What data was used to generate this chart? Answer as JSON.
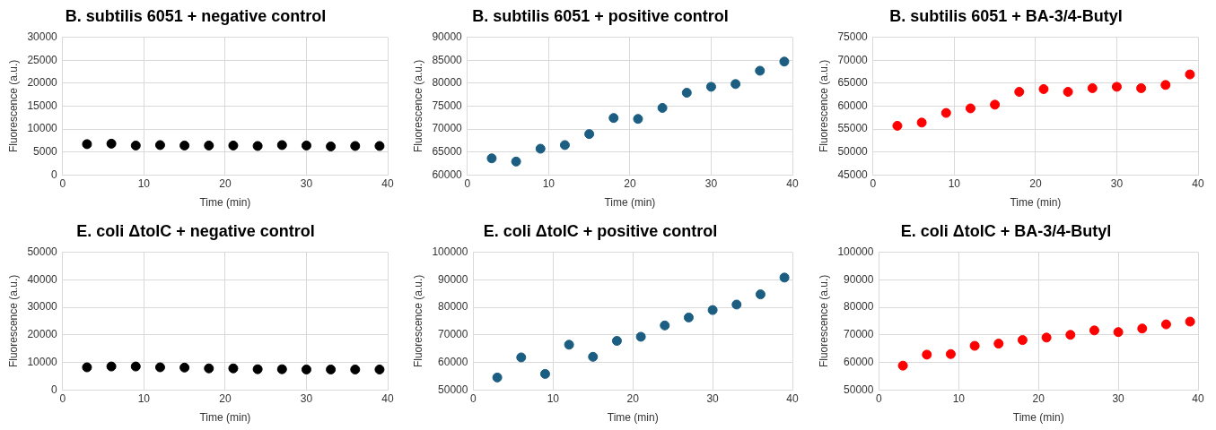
{
  "chart_data": [
    {
      "type": "scatter",
      "title": "B. subtilis 6051 + negative control",
      "xlabel": "Time (min)",
      "ylabel": "Fluorescence (a.u.)",
      "x": [
        3,
        6,
        9,
        12,
        15,
        18,
        21,
        24,
        27,
        30,
        33,
        36,
        39
      ],
      "xlim": [
        0,
        40
      ],
      "xticks": [
        0,
        10,
        20,
        30,
        40
      ],
      "ylim": [
        0,
        30000
      ],
      "yticks": [
        0,
        5000,
        10000,
        15000,
        20000,
        25000,
        30000
      ],
      "grid": true,
      "marker": "circle",
      "legend": false,
      "series": [
        {
          "color": "#000000",
          "values": [
            6700,
            6800,
            6400,
            6500,
            6400,
            6400,
            6400,
            6300,
            6500,
            6400,
            6200,
            6300,
            6300
          ]
        }
      ]
    },
    {
      "type": "scatter",
      "title": "B. subtilis 6051 + positive control",
      "xlabel": "Time (min)",
      "ylabel": "Fluorescence (a.u.)",
      "x": [
        3,
        6,
        9,
        12,
        15,
        18,
        21,
        24,
        27,
        30,
        33,
        36,
        39
      ],
      "xlim": [
        0,
        40
      ],
      "xticks": [
        0,
        10,
        20,
        30,
        40
      ],
      "ylim": [
        60000,
        90000
      ],
      "yticks": [
        60000,
        65000,
        70000,
        75000,
        80000,
        85000,
        90000
      ],
      "grid": true,
      "marker": "circle",
      "legend": false,
      "series": [
        {
          "color": "#1b5e82",
          "values": [
            63600,
            62900,
            65700,
            66500,
            68900,
            72400,
            72200,
            74600,
            77900,
            79200,
            79800,
            82700,
            84700
          ]
        }
      ]
    },
    {
      "type": "scatter",
      "title": "B. subtilis 6051 + BA-3/4-Butyl",
      "xlabel": "Time (min)",
      "ylabel": "Fluorescence (a.u.)",
      "x": [
        3,
        6,
        9,
        12,
        15,
        18,
        21,
        24,
        27,
        30,
        33,
        36,
        39
      ],
      "xlim": [
        0,
        40
      ],
      "xticks": [
        0,
        10,
        20,
        30,
        40
      ],
      "ylim": [
        45000,
        75000
      ],
      "yticks": [
        45000,
        50000,
        55000,
        60000,
        65000,
        70000,
        75000
      ],
      "grid": true,
      "marker": "circle",
      "legend": false,
      "series": [
        {
          "color": "#ff0000",
          "values": [
            55700,
            56400,
            58500,
            59500,
            60300,
            63100,
            63700,
            63100,
            63900,
            64200,
            63900,
            64600,
            66900
          ]
        }
      ]
    },
    {
      "type": "scatter",
      "title": "E. coli ΔtolC + negative control",
      "xlabel": "Time (min)",
      "ylabel": "Fluorescence (a.u.)",
      "x": [
        3,
        6,
        9,
        12,
        15,
        18,
        21,
        24,
        27,
        30,
        33,
        36,
        39
      ],
      "xlim": [
        0,
        40
      ],
      "xticks": [
        0,
        10,
        20,
        30,
        40
      ],
      "ylim": [
        0,
        50000
      ],
      "yticks": [
        0,
        10000,
        20000,
        30000,
        40000,
        50000
      ],
      "grid": true,
      "marker": "circle",
      "legend": false,
      "series": [
        {
          "color": "#000000",
          "values": [
            8200,
            8500,
            8500,
            8200,
            8100,
            7800,
            7800,
            7500,
            7500,
            7400,
            7400,
            7400,
            7400
          ]
        }
      ]
    },
    {
      "type": "scatter",
      "title": "E. coli ΔtolC + positive control",
      "xlabel": "Time (min)",
      "ylabel": "Fluorescence (a.u.)",
      "x": [
        3,
        6,
        9,
        12,
        15,
        18,
        21,
        24,
        27,
        30,
        33,
        36,
        39
      ],
      "xlim": [
        0,
        40
      ],
      "xticks": [
        0,
        10,
        20,
        30,
        40
      ],
      "ylim": [
        50000,
        100000
      ],
      "yticks": [
        50000,
        60000,
        70000,
        80000,
        90000,
        100000
      ],
      "grid": true,
      "marker": "circle",
      "legend": false,
      "series": [
        {
          "color": "#1b5e82",
          "values": [
            54500,
            61800,
            55800,
            66400,
            62000,
            67800,
            69300,
            73400,
            76300,
            79000,
            81000,
            84700,
            90800
          ]
        }
      ]
    },
    {
      "type": "scatter",
      "title": "E. coli ΔtolC + BA-3/4-Butyl",
      "xlabel": "Time (min)",
      "ylabel": "Fluorescence (a.u.)",
      "x": [
        3,
        6,
        9,
        12,
        15,
        18,
        21,
        24,
        27,
        30,
        33,
        36,
        39
      ],
      "xlim": [
        0,
        40
      ],
      "xticks": [
        0,
        10,
        20,
        30,
        40
      ],
      "ylim": [
        50000,
        100000
      ],
      "yticks": [
        50000,
        60000,
        70000,
        80000,
        90000,
        100000
      ],
      "grid": true,
      "marker": "circle",
      "legend": false,
      "series": [
        {
          "color": "#ff0000",
          "values": [
            58800,
            62800,
            63000,
            66000,
            66800,
            68100,
            69000,
            70000,
            71600,
            71000,
            72300,
            73800,
            74800
          ]
        }
      ]
    }
  ]
}
